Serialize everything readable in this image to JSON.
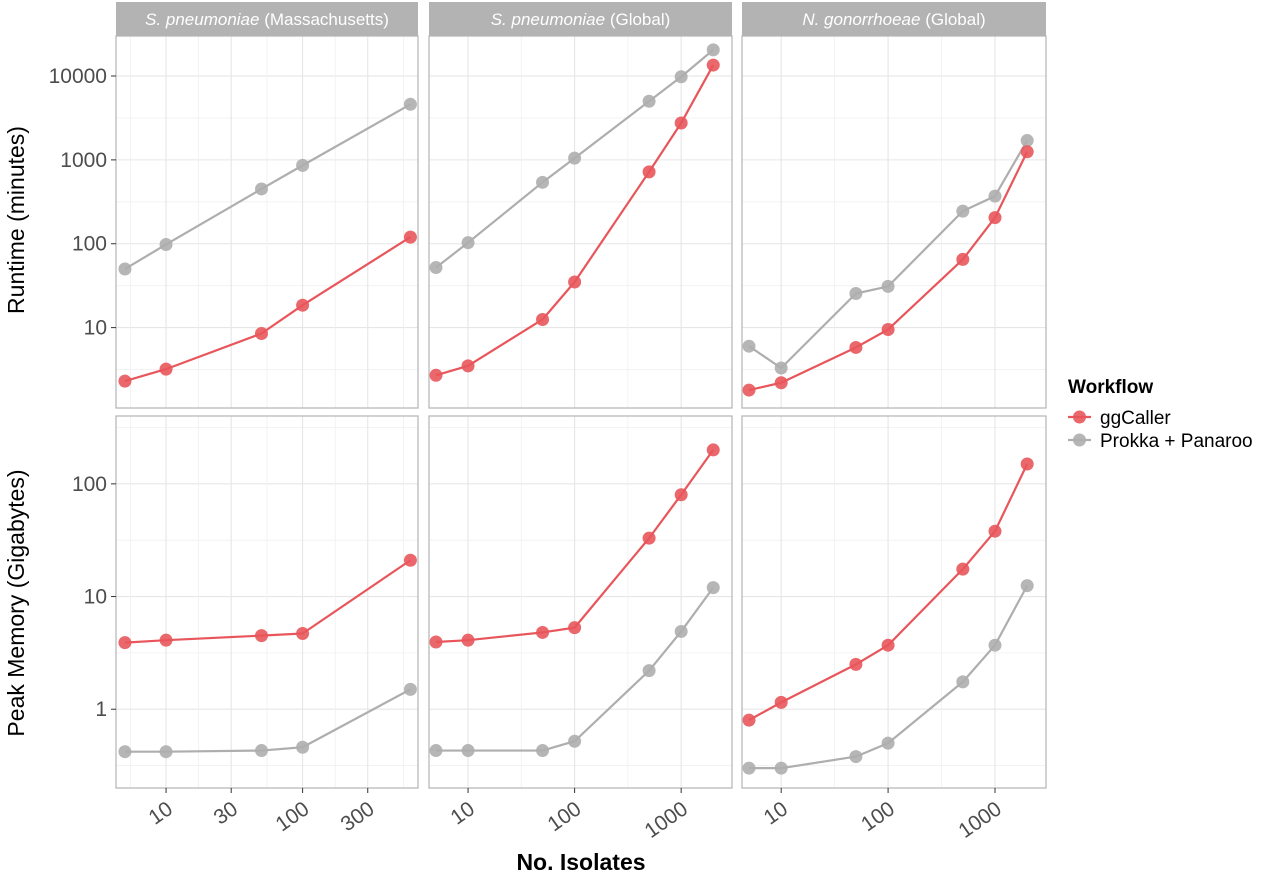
{
  "figure": {
    "x_axis_title": "No. Isolates",
    "legend": {
      "title": "Workflow",
      "placement": "right"
    }
  },
  "colors": {
    "ggCaller": "#e8565b",
    "Prokka + Panaroo": "#aeaeae",
    "strip": "#b3b3b3"
  },
  "chart_data": [
    {
      "type": "line",
      "facet": "S. pneumoniae (Massachusetts)",
      "strip": {
        "italic": "S. pneumoniae",
        "plain": " (Massachusetts)"
      },
      "ylabel": "Runtime (minutes)",
      "x_scale": "log10",
      "y_scale": "log10",
      "xlim": [
        4.3,
        700
      ],
      "ylim": [
        1.1,
        30000
      ],
      "x_ticks": [],
      "y_ticks": [
        10,
        100,
        1000,
        10000
      ],
      "series": [
        {
          "name": "ggCaller",
          "x": [
            5,
            10,
            50,
            100,
            616
          ],
          "y": [
            2.3,
            3.2,
            8.5,
            18.5,
            120
          ]
        },
        {
          "name": "Prokka + Panaroo",
          "x": [
            5,
            10,
            50,
            100,
            616
          ],
          "y": [
            50,
            98,
            450,
            860,
            4600
          ]
        }
      ]
    },
    {
      "type": "line",
      "facet": "S. pneumoniae (Global)",
      "strip": {
        "italic": "S. pneumoniae",
        "plain": " (Global)"
      },
      "ylabel": "",
      "x_scale": "log10",
      "y_scale": "log10",
      "xlim": [
        4.3,
        3000
      ],
      "ylim": [
        1.1,
        30000
      ],
      "x_ticks": [],
      "y_ticks": [
        10,
        100,
        1000,
        10000
      ],
      "series": [
        {
          "name": "ggCaller",
          "x": [
            5,
            10,
            50,
            100,
            500,
            1000,
            2000
          ],
          "y": [
            2.7,
            3.5,
            12.5,
            35,
            720,
            2750,
            13500
          ]
        },
        {
          "name": "Prokka + Panaroo",
          "x": [
            5,
            10,
            50,
            100,
            500,
            1000,
            2000
          ],
          "y": [
            52,
            103,
            540,
            1050,
            5000,
            9800,
            20500
          ]
        }
      ]
    },
    {
      "type": "line",
      "facet": "N. gonorrhoeae (Global)",
      "strip": {
        "italic": "N. gonorrhoeae",
        "plain": " (Global)"
      },
      "ylabel": "",
      "x_scale": "log10",
      "y_scale": "log10",
      "xlim": [
        4.3,
        3000
      ],
      "ylim": [
        1.1,
        30000
      ],
      "x_ticks": [],
      "y_ticks": [
        10,
        100,
        1000,
        10000
      ],
      "series": [
        {
          "name": "ggCaller",
          "x": [
            5,
            10,
            50,
            100,
            500,
            1000,
            2000
          ],
          "y": [
            1.8,
            2.2,
            5.8,
            9.5,
            65,
            205,
            1250
          ]
        },
        {
          "name": "Prokka + Panaroo",
          "x": [
            5,
            10,
            50,
            100,
            500,
            1000,
            2000
          ],
          "y": [
            6,
            3.3,
            25.5,
            31,
            245,
            370,
            1700
          ]
        }
      ]
    },
    {
      "type": "line",
      "facet": "S. pneumoniae (Massachusetts)",
      "ylabel": "Peak Memory (Gigabytes)",
      "x_scale": "log10",
      "y_scale": "log10",
      "xlim": [
        4.3,
        700
      ],
      "ylim": [
        0.2,
        400
      ],
      "x_ticks": [
        10,
        30,
        100,
        300
      ],
      "y_ticks": [
        1,
        10,
        100
      ],
      "series": [
        {
          "name": "ggCaller",
          "x": [
            5,
            10,
            50,
            100,
            616
          ],
          "y": [
            3.9,
            4.1,
            4.5,
            4.7,
            21
          ]
        },
        {
          "name": "Prokka + Panaroo",
          "x": [
            5,
            10,
            50,
            100,
            616
          ],
          "y": [
            0.42,
            0.42,
            0.43,
            0.46,
            1.5
          ]
        }
      ]
    },
    {
      "type": "line",
      "facet": "S. pneumoniae (Global)",
      "ylabel": "",
      "x_scale": "log10",
      "y_scale": "log10",
      "xlim": [
        4.3,
        3000
      ],
      "ylim": [
        0.2,
        400
      ],
      "x_ticks": [
        10,
        100,
        1000
      ],
      "y_ticks": [
        1,
        10,
        100
      ],
      "series": [
        {
          "name": "ggCaller",
          "x": [
            5,
            10,
            50,
            100,
            500,
            1000,
            2000
          ],
          "y": [
            3.95,
            4.1,
            4.8,
            5.3,
            33,
            80,
            200
          ]
        },
        {
          "name": "Prokka + Panaroo",
          "x": [
            5,
            10,
            50,
            100,
            500,
            1000,
            2000
          ],
          "y": [
            0.43,
            0.43,
            0.43,
            0.52,
            2.2,
            4.9,
            12
          ]
        }
      ]
    },
    {
      "type": "line",
      "facet": "N. gonorrhoeae (Global)",
      "ylabel": "",
      "x_scale": "log10",
      "y_scale": "log10",
      "xlim": [
        4.3,
        3000
      ],
      "ylim": [
        0.2,
        400
      ],
      "x_ticks": [
        10,
        100,
        1000
      ],
      "y_ticks": [
        1,
        10,
        100
      ],
      "series": [
        {
          "name": "ggCaller",
          "x": [
            5,
            10,
            50,
            100,
            500,
            1000,
            2000
          ],
          "y": [
            0.8,
            1.15,
            2.5,
            3.7,
            17.5,
            38,
            150
          ]
        },
        {
          "name": "Prokka + Panaroo",
          "x": [
            5,
            10,
            50,
            100,
            500,
            1000,
            2000
          ],
          "y": [
            0.3,
            0.3,
            0.38,
            0.5,
            1.75,
            3.7,
            12.5
          ]
        }
      ]
    }
  ]
}
